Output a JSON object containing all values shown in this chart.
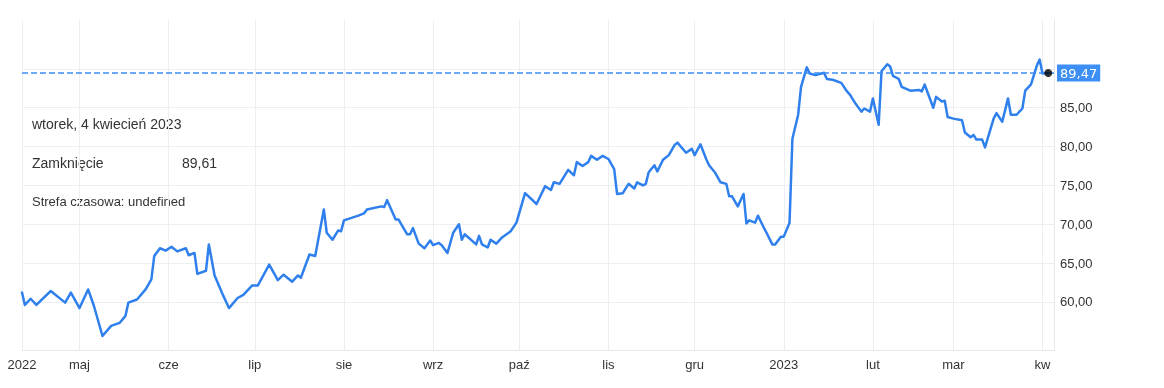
{
  "chart_data": {
    "type": "line",
    "xlim": [
      "2022-04-11",
      "2023-04-05"
    ],
    "ylim": [
      53.8,
      96.3
    ],
    "xticks": [
      {
        "value": "2022-04-11",
        "label": "2022"
      },
      {
        "value": "2022-05-01",
        "label": "maj"
      },
      {
        "value": "2022-06-01",
        "label": "cze"
      },
      {
        "value": "2022-07-01",
        "label": "lip"
      },
      {
        "value": "2022-08-01",
        "label": "sie"
      },
      {
        "value": "2022-09-01",
        "label": "wrz"
      },
      {
        "value": "2022-10-01",
        "label": "paź"
      },
      {
        "value": "2022-11-01",
        "label": "lis"
      },
      {
        "value": "2022-12-01",
        "label": "gru"
      },
      {
        "value": "2023-01-01",
        "label": "2023"
      },
      {
        "value": "2023-02-01",
        "label": "lut"
      },
      {
        "value": "2023-03-01",
        "label": "mar"
      },
      {
        "value": "2023-04-01",
        "label": "kw"
      }
    ],
    "yticks": [
      {
        "value": 60,
        "label": "60,00"
      },
      {
        "value": 65,
        "label": "65,00"
      },
      {
        "value": 70,
        "label": "70,00"
      },
      {
        "value": 75,
        "label": "75,00"
      },
      {
        "value": 80,
        "label": "80,00"
      },
      {
        "value": 85,
        "label": "85,00"
      },
      {
        "value": 90,
        "label": null
      }
    ],
    "grid": true,
    "marker": "none",
    "line_style": "solid",
    "ref_lines": [
      {
        "axis": "y",
        "value": 89.47,
        "label": "89,47",
        "color": "#3d8ff5",
        "line_style": "dashed"
      }
    ],
    "annotations": [
      "wtorek, 4 kwiecień 2023",
      "Zamknięcie",
      "89,61",
      "Strefa czasowa: undefined"
    ],
    "series": [
      {
        "color": "#2f80ed",
        "x": [
          "2022-04-11",
          "2022-04-12",
          "2022-04-14",
          "2022-04-16",
          "2022-04-21",
          "2022-04-26",
          "2022-04-28",
          "2022-05-01",
          "2022-05-04",
          "2022-05-06",
          "2022-05-09",
          "2022-05-12",
          "2022-05-15",
          "2022-05-17",
          "2022-05-18",
          "2022-05-21",
          "2022-05-24",
          "2022-05-26",
          "2022-05-27",
          "2022-05-29",
          "2022-05-31",
          "2022-06-02",
          "2022-06-04",
          "2022-06-07",
          "2022-06-08",
          "2022-06-10",
          "2022-06-11",
          "2022-06-14",
          "2022-06-15",
          "2022-06-17",
          "2022-06-20",
          "2022-06-22",
          "2022-06-25",
          "2022-06-27",
          "2022-06-30",
          "2022-07-02",
          "2022-07-06",
          "2022-07-09",
          "2022-07-11",
          "2022-07-14",
          "2022-07-16",
          "2022-07-17",
          "2022-07-20",
          "2022-07-22",
          "2022-07-25",
          "2022-07-26",
          "2022-07-28",
          "2022-07-30",
          "2022-07-31",
          "2022-08-01",
          "2022-08-06",
          "2022-08-08",
          "2022-08-09",
          "2022-08-14",
          "2022-08-15",
          "2022-08-16",
          "2022-08-19",
          "2022-08-20",
          "2022-08-23",
          "2022-08-24",
          "2022-08-25",
          "2022-08-27",
          "2022-08-29",
          "2022-08-31",
          "2022-09-01",
          "2022-09-03",
          "2022-09-04",
          "2022-09-06",
          "2022-09-08",
          "2022-09-10",
          "2022-09-11",
          "2022-09-12",
          "2022-09-16",
          "2022-09-17",
          "2022-09-18",
          "2022-09-20",
          "2022-09-21",
          "2022-09-23",
          "2022-09-25",
          "2022-09-28",
          "2022-09-30",
          "2022-10-03",
          "2022-10-07",
          "2022-10-10",
          "2022-10-12",
          "2022-10-13",
          "2022-10-15",
          "2022-10-18",
          "2022-10-20",
          "2022-10-21",
          "2022-10-23",
          "2022-10-25",
          "2022-10-26",
          "2022-10-28",
          "2022-10-30",
          "2022-11-01",
          "2022-11-03",
          "2022-11-04",
          "2022-11-06",
          "2022-11-08",
          "2022-11-10",
          "2022-11-11",
          "2022-11-13",
          "2022-11-14",
          "2022-11-15",
          "2022-11-17",
          "2022-11-18",
          "2022-11-20",
          "2022-11-22",
          "2022-11-24",
          "2022-11-25",
          "2022-11-28",
          "2022-11-30",
          "2022-12-01",
          "2022-12-03",
          "2022-12-05",
          "2022-12-06",
          "2022-12-08",
          "2022-12-10",
          "2022-12-12",
          "2022-12-13",
          "2022-12-14",
          "2022-12-16",
          "2022-12-18",
          "2022-12-19",
          "2022-12-20",
          "2022-12-22",
          "2022-12-23",
          "2022-12-25",
          "2022-12-26",
          "2022-12-28",
          "2022-12-29",
          "2022-12-31",
          "2023-01-01",
          "2023-01-03",
          "2023-01-04",
          "2023-01-06",
          "2023-01-07",
          "2023-01-09",
          "2023-01-10",
          "2023-01-12",
          "2023-01-15",
          "2023-01-16",
          "2023-01-18",
          "2023-01-21",
          "2023-01-23",
          "2023-01-24",
          "2023-01-26",
          "2023-01-28",
          "2023-01-29",
          "2023-01-31",
          "2023-02-01",
          "2023-02-03",
          "2023-02-04",
          "2023-02-06",
          "2023-02-07",
          "2023-02-08",
          "2023-02-10",
          "2023-02-11",
          "2023-02-14",
          "2023-02-17",
          "2023-02-18",
          "2023-02-19",
          "2023-02-22",
          "2023-02-23",
          "2023-02-25",
          "2023-02-26",
          "2023-02-27",
          "2023-03-01",
          "2023-03-04",
          "2023-03-05",
          "2023-03-07",
          "2023-03-08",
          "2023-03-09",
          "2023-03-11",
          "2023-03-12",
          "2023-03-15",
          "2023-03-16",
          "2023-03-18",
          "2023-03-20",
          "2023-03-21",
          "2023-03-23",
          "2023-03-25",
          "2023-03-26",
          "2023-03-28",
          "2023-03-30",
          "2023-03-31",
          "2023-04-01",
          "2023-04-03"
        ],
        "values": [
          61.2,
          59.6,
          60.4,
          59.6,
          61.4,
          59.9,
          61.2,
          59.2,
          61.6,
          59.5,
          55.6,
          56.9,
          57.3,
          58.2,
          59.9,
          60.3,
          61.6,
          62.9,
          65.9,
          66.9,
          66.6,
          67.1,
          66.5,
          66.9,
          66.0,
          66.3,
          63.6,
          64.0,
          67.4,
          63.4,
          60.8,
          59.2,
          60.5,
          60.9,
          62.1,
          62.1,
          64.8,
          62.8,
          63.5,
          62.6,
          63.4,
          63.1,
          66.1,
          65.9,
          71.9,
          68.9,
          68.0,
          69.2,
          69.1,
          70.5,
          71.1,
          71.4,
          71.9,
          72.3,
          72.2,
          73.1,
          70.6,
          70.6,
          68.7,
          68.7,
          69.5,
          67.5,
          66.9,
          67.9,
          67.3,
          67.6,
          67.3,
          66.3,
          68.9,
          70.0,
          68.0,
          68.7,
          67.4,
          68.5,
          67.4,
          67.0,
          68.0,
          67.5,
          68.3,
          69.1,
          70.2,
          74.0,
          72.6,
          74.9,
          74.4,
          75.4,
          75.2,
          77.0,
          76.3,
          78.0,
          77.5,
          78.0,
          78.8,
          78.3,
          78.8,
          78.4,
          77.1,
          73.9,
          74.0,
          75.2,
          74.6,
          75.4,
          75.0,
          75.2,
          76.7,
          77.6,
          76.8,
          78.3,
          78.9,
          80.2,
          80.5,
          79.2,
          79.7,
          78.9,
          80.3,
          78.4,
          77.6,
          76.7,
          75.4,
          75.2,
          73.6,
          73.6,
          72.3,
          73.9,
          70.1,
          70.5,
          70.2,
          71.1,
          69.6,
          68.9,
          67.4,
          67.4,
          68.4,
          68.4,
          70.2,
          81.0,
          84.1,
          87.7,
          90.2,
          89.4,
          89.2,
          89.5,
          88.7,
          88.6,
          88.2,
          87.1,
          86.7,
          85.5,
          84.5,
          84.9,
          84.5,
          86.2,
          82.8,
          89.7,
          90.6,
          90.3,
          89.1,
          88.7,
          87.7,
          87.2,
          87.3,
          87.1,
          88.0,
          85.0,
          86.4,
          85.8,
          85.9,
          83.8,
          83.6,
          83.4,
          81.8,
          81.2,
          81.5,
          80.9,
          80.9,
          79.9,
          83.6,
          84.3,
          83.2,
          86.2,
          84.1,
          84.1,
          84.9,
          87.2,
          88.0,
          90.4,
          91.2,
          89.4,
          89.47
        ]
      },
      {
        "type": "scatter",
        "color": "#000000",
        "marker": "circle",
        "x": [
          "2023-04-03"
        ],
        "values": [
          89.47
        ]
      }
    ]
  }
}
